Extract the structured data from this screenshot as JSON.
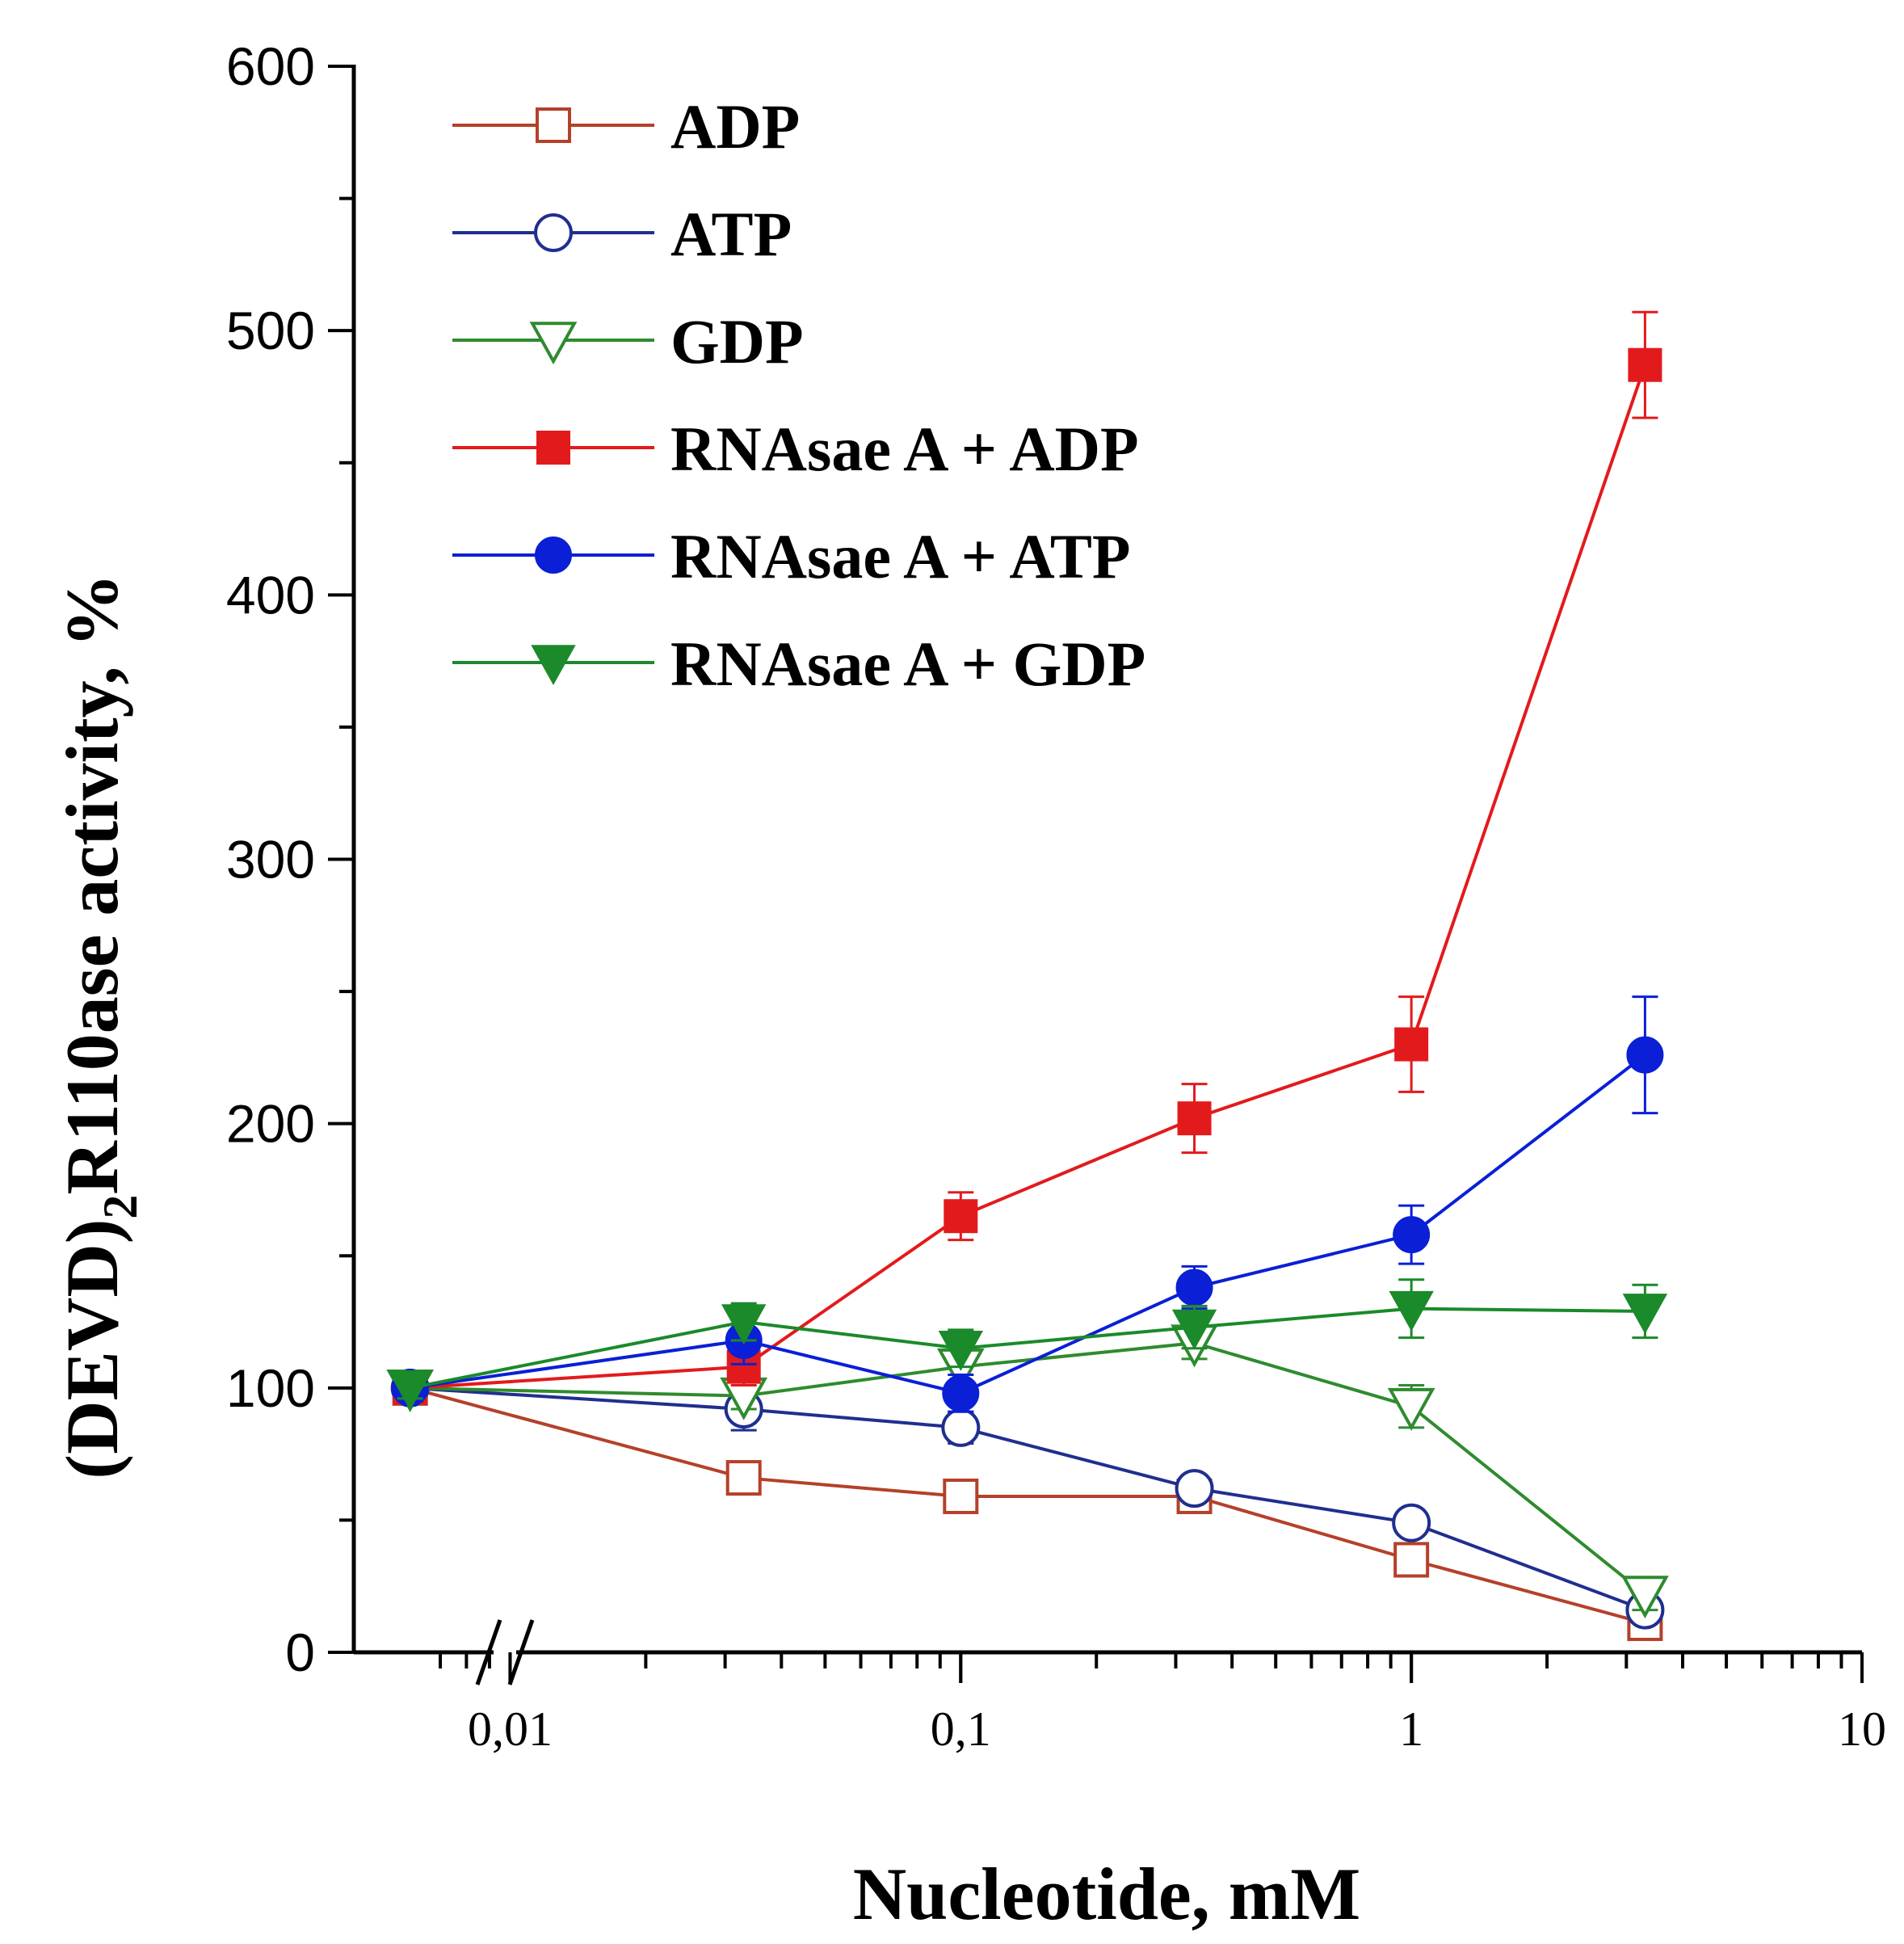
{
  "chart_data": {
    "type": "line",
    "title": "",
    "xlabel": "Nucleotide, mM",
    "ylabel": "(DEVD)2R110ase activity, %",
    "ylabel_parts": {
      "before": "(DEVD)",
      "subscript": "2",
      "after": "R110ase activity, %"
    },
    "x_scale": "log",
    "xlim": [
      0.0045,
      10
    ],
    "ylim": [
      0,
      600
    ],
    "x_broken_axis": true,
    "x_ticks": [
      {
        "value": 0.01,
        "label": "0,01"
      },
      {
        "value": 0.1,
        "label": "0,1"
      },
      {
        "value": 1,
        "label": "1"
      },
      {
        "value": 10,
        "label": "10"
      }
    ],
    "y_ticks": [
      {
        "value": 0,
        "label": "0"
      },
      {
        "value": 100,
        "label": "100"
      },
      {
        "value": 200,
        "label": "200"
      },
      {
        "value": 300,
        "label": "300"
      },
      {
        "value": 400,
        "label": "400"
      },
      {
        "value": 500,
        "label": "500"
      },
      {
        "value": 600,
        "label": "600"
      }
    ],
    "legend_position": "top-left",
    "series": [
      {
        "name": "ADP",
        "color": "#b5402a",
        "marker": "square",
        "filled": false,
        "x": [
          0.006,
          0.033,
          0.1,
          0.33,
          1,
          3.3
        ],
        "y": [
          100,
          66,
          59,
          59,
          35,
          11
        ],
        "err": [
          4,
          5,
          4,
          5,
          5,
          4
        ]
      },
      {
        "name": "ATP",
        "color": "#1f2f8f",
        "marker": "circle",
        "filled": false,
        "x": [
          0.006,
          0.033,
          0.1,
          0.33,
          1,
          3.3
        ],
        "y": [
          100,
          92,
          85,
          62,
          49,
          16
        ],
        "err": [
          4,
          8,
          6,
          5,
          5,
          4
        ]
      },
      {
        "name": "GDP",
        "color": "#2e8b2e",
        "marker": "triangle-down",
        "filled": false,
        "x": [
          0.006,
          0.033,
          0.1,
          0.33,
          1,
          3.3
        ],
        "y": [
          100,
          97,
          108,
          117,
          93,
          22
        ],
        "err": [
          4,
          5,
          6,
          6,
          8,
          6
        ]
      },
      {
        "name": "RNAsae A + ADP",
        "color": "#e31a1c",
        "marker": "square",
        "filled": true,
        "x": [
          0.006,
          0.033,
          0.1,
          0.33,
          1,
          3.3
        ],
        "y": [
          100,
          108,
          165,
          202,
          230,
          487
        ],
        "err": [
          4,
          7,
          9,
          13,
          18,
          20
        ]
      },
      {
        "name": "RNAsae A + ATP",
        "color": "#0a1fd6",
        "marker": "circle",
        "filled": true,
        "x": [
          0.006,
          0.033,
          0.1,
          0.33,
          1,
          3.3
        ],
        "y": [
          100,
          118,
          98,
          138,
          158,
          226
        ],
        "err": [
          5,
          9,
          7,
          8,
          11,
          22
        ]
      },
      {
        "name": "RNAsae A + GDP",
        "color": "#1a8a2a",
        "marker": "triangle-down",
        "filled": true,
        "x": [
          0.006,
          0.033,
          0.1,
          0.33,
          1,
          3.3
        ],
        "y": [
          100,
          125,
          115,
          123,
          130,
          129
        ],
        "err": [
          4,
          7,
          7,
          8,
          11,
          10
        ]
      }
    ]
  }
}
